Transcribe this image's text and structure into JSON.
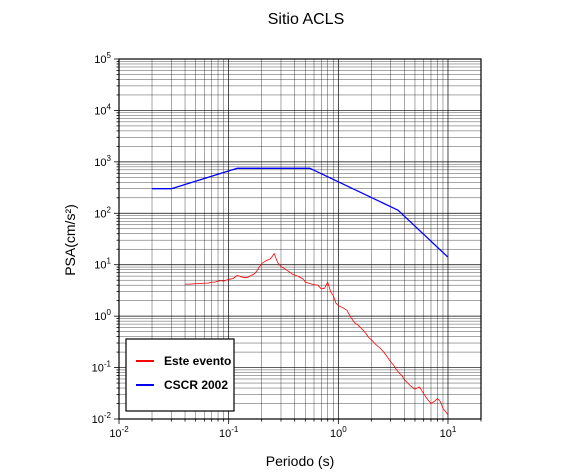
{
  "chart_data": {
    "type": "line",
    "title": "Sitio ACLS",
    "xlabel": "Periodo (s)",
    "ylabel": "PSA(cm/s²)",
    "xscale": "log",
    "yscale": "log",
    "xlim": [
      0.01,
      20
    ],
    "ylim": [
      0.01,
      100000
    ],
    "grid": true,
    "legend_position": "bottom-left",
    "x_tick_labels": [
      {
        "value": 0.01,
        "base": "10",
        "exp": "-2"
      },
      {
        "value": 0.1,
        "base": "10",
        "exp": "-1"
      },
      {
        "value": 1,
        "base": "10",
        "exp": "0"
      },
      {
        "value": 10,
        "base": "10",
        "exp": "1"
      }
    ],
    "y_tick_labels": [
      {
        "value": 0.01,
        "base": "10",
        "exp": "-2"
      },
      {
        "value": 0.1,
        "base": "10",
        "exp": "-1"
      },
      {
        "value": 1,
        "base": "10",
        "exp": "0"
      },
      {
        "value": 10,
        "base": "10",
        "exp": "1"
      },
      {
        "value": 100,
        "base": "10",
        "exp": "2"
      },
      {
        "value": 1000,
        "base": "10",
        "exp": "3"
      },
      {
        "value": 10000,
        "base": "10",
        "exp": "4"
      },
      {
        "value": 100000,
        "base": "10",
        "exp": "5"
      }
    ],
    "series": [
      {
        "name": "Este evento",
        "color": "#ff0000",
        "x": [
          0.04,
          0.045,
          0.05,
          0.055,
          0.06,
          0.065,
          0.07,
          0.075,
          0.08,
          0.085,
          0.09,
          0.095,
          0.1,
          0.11,
          0.12,
          0.13,
          0.14,
          0.15,
          0.16,
          0.17,
          0.18,
          0.19,
          0.2,
          0.22,
          0.24,
          0.25,
          0.26,
          0.28,
          0.3,
          0.32,
          0.34,
          0.36,
          0.38,
          0.4,
          0.42,
          0.44,
          0.46,
          0.48,
          0.5,
          0.55,
          0.6,
          0.65,
          0.7,
          0.75,
          0.8,
          0.85,
          0.9,
          0.95,
          1.0,
          1.1,
          1.2,
          1.3,
          1.4,
          1.5,
          1.6,
          1.7,
          1.8,
          1.9,
          2.0,
          2.2,
          2.4,
          2.6,
          2.8,
          3.0,
          3.2,
          3.4,
          3.6,
          3.8,
          4.0,
          4.5,
          5.0,
          5.5,
          6.0,
          6.5,
          7.0,
          7.5,
          8.0,
          8.5,
          9.0,
          9.5,
          10.0
        ],
        "y": [
          4.2,
          4.2,
          4.3,
          4.3,
          4.4,
          4.4,
          4.6,
          4.6,
          4.8,
          4.9,
          4.8,
          5.0,
          5.2,
          5.4,
          6.2,
          5.8,
          5.6,
          5.7,
          6.2,
          6.5,
          7.5,
          9.0,
          10.5,
          12.0,
          13.0,
          14.5,
          16.5,
          11.0,
          9.2,
          8.5,
          7.8,
          7.2,
          6.6,
          6.3,
          6.1,
          5.8,
          5.5,
          5.2,
          4.6,
          4.3,
          4.1,
          4.0,
          3.4,
          3.5,
          4.6,
          3.0,
          2.5,
          1.8,
          1.6,
          1.45,
          1.3,
          0.95,
          0.75,
          0.68,
          0.6,
          0.52,
          0.45,
          0.38,
          0.35,
          0.28,
          0.24,
          0.2,
          0.16,
          0.13,
          0.11,
          0.09,
          0.078,
          0.07,
          0.058,
          0.045,
          0.038,
          0.042,
          0.031,
          0.024,
          0.02,
          0.022,
          0.025,
          0.022,
          0.016,
          0.014,
          0.012
        ]
      },
      {
        "name": "CSCR 2002",
        "color": "#0000ff",
        "x": [
          0.02,
          0.03,
          0.12,
          0.55,
          3.5,
          10.0
        ],
        "y": [
          300,
          300,
          750,
          750,
          115,
          14
        ]
      }
    ]
  }
}
